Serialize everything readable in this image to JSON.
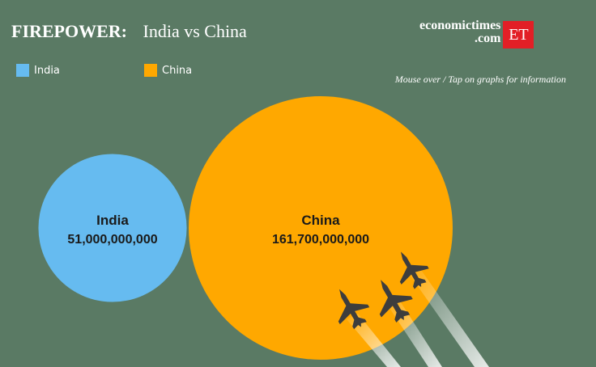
{
  "header": {
    "title_bold": "FIREPOWER:",
    "title_rest": "India vs China",
    "logo_line1": "economictimes",
    "logo_line2": ".com",
    "logo_badge": "ET",
    "hint": "Mouse over / Tap on graphs for information"
  },
  "colors": {
    "background": "#5a7a64",
    "india": "#66bbf0",
    "china": "#ffa800",
    "jet": "#3d3d3d"
  },
  "icons": [
    "fighter-jet-icon",
    "fighter-jet-icon",
    "fighter-jet-icon"
  ],
  "chart_data": {
    "type": "bubble",
    "title": "FIREPOWER: India vs China",
    "legend": [
      {
        "name": "India",
        "color": "#66bbf0"
      },
      {
        "name": "China",
        "color": "#ffa800"
      }
    ],
    "legend_position": "top-left",
    "grid": false,
    "series": [
      {
        "name": "India",
        "value": 51000000000,
        "value_label": "51,000,000,000",
        "color": "#66bbf0"
      },
      {
        "name": "China",
        "value": 161700000000,
        "value_label": "161,700,000,000",
        "color": "#ffa800"
      }
    ]
  }
}
